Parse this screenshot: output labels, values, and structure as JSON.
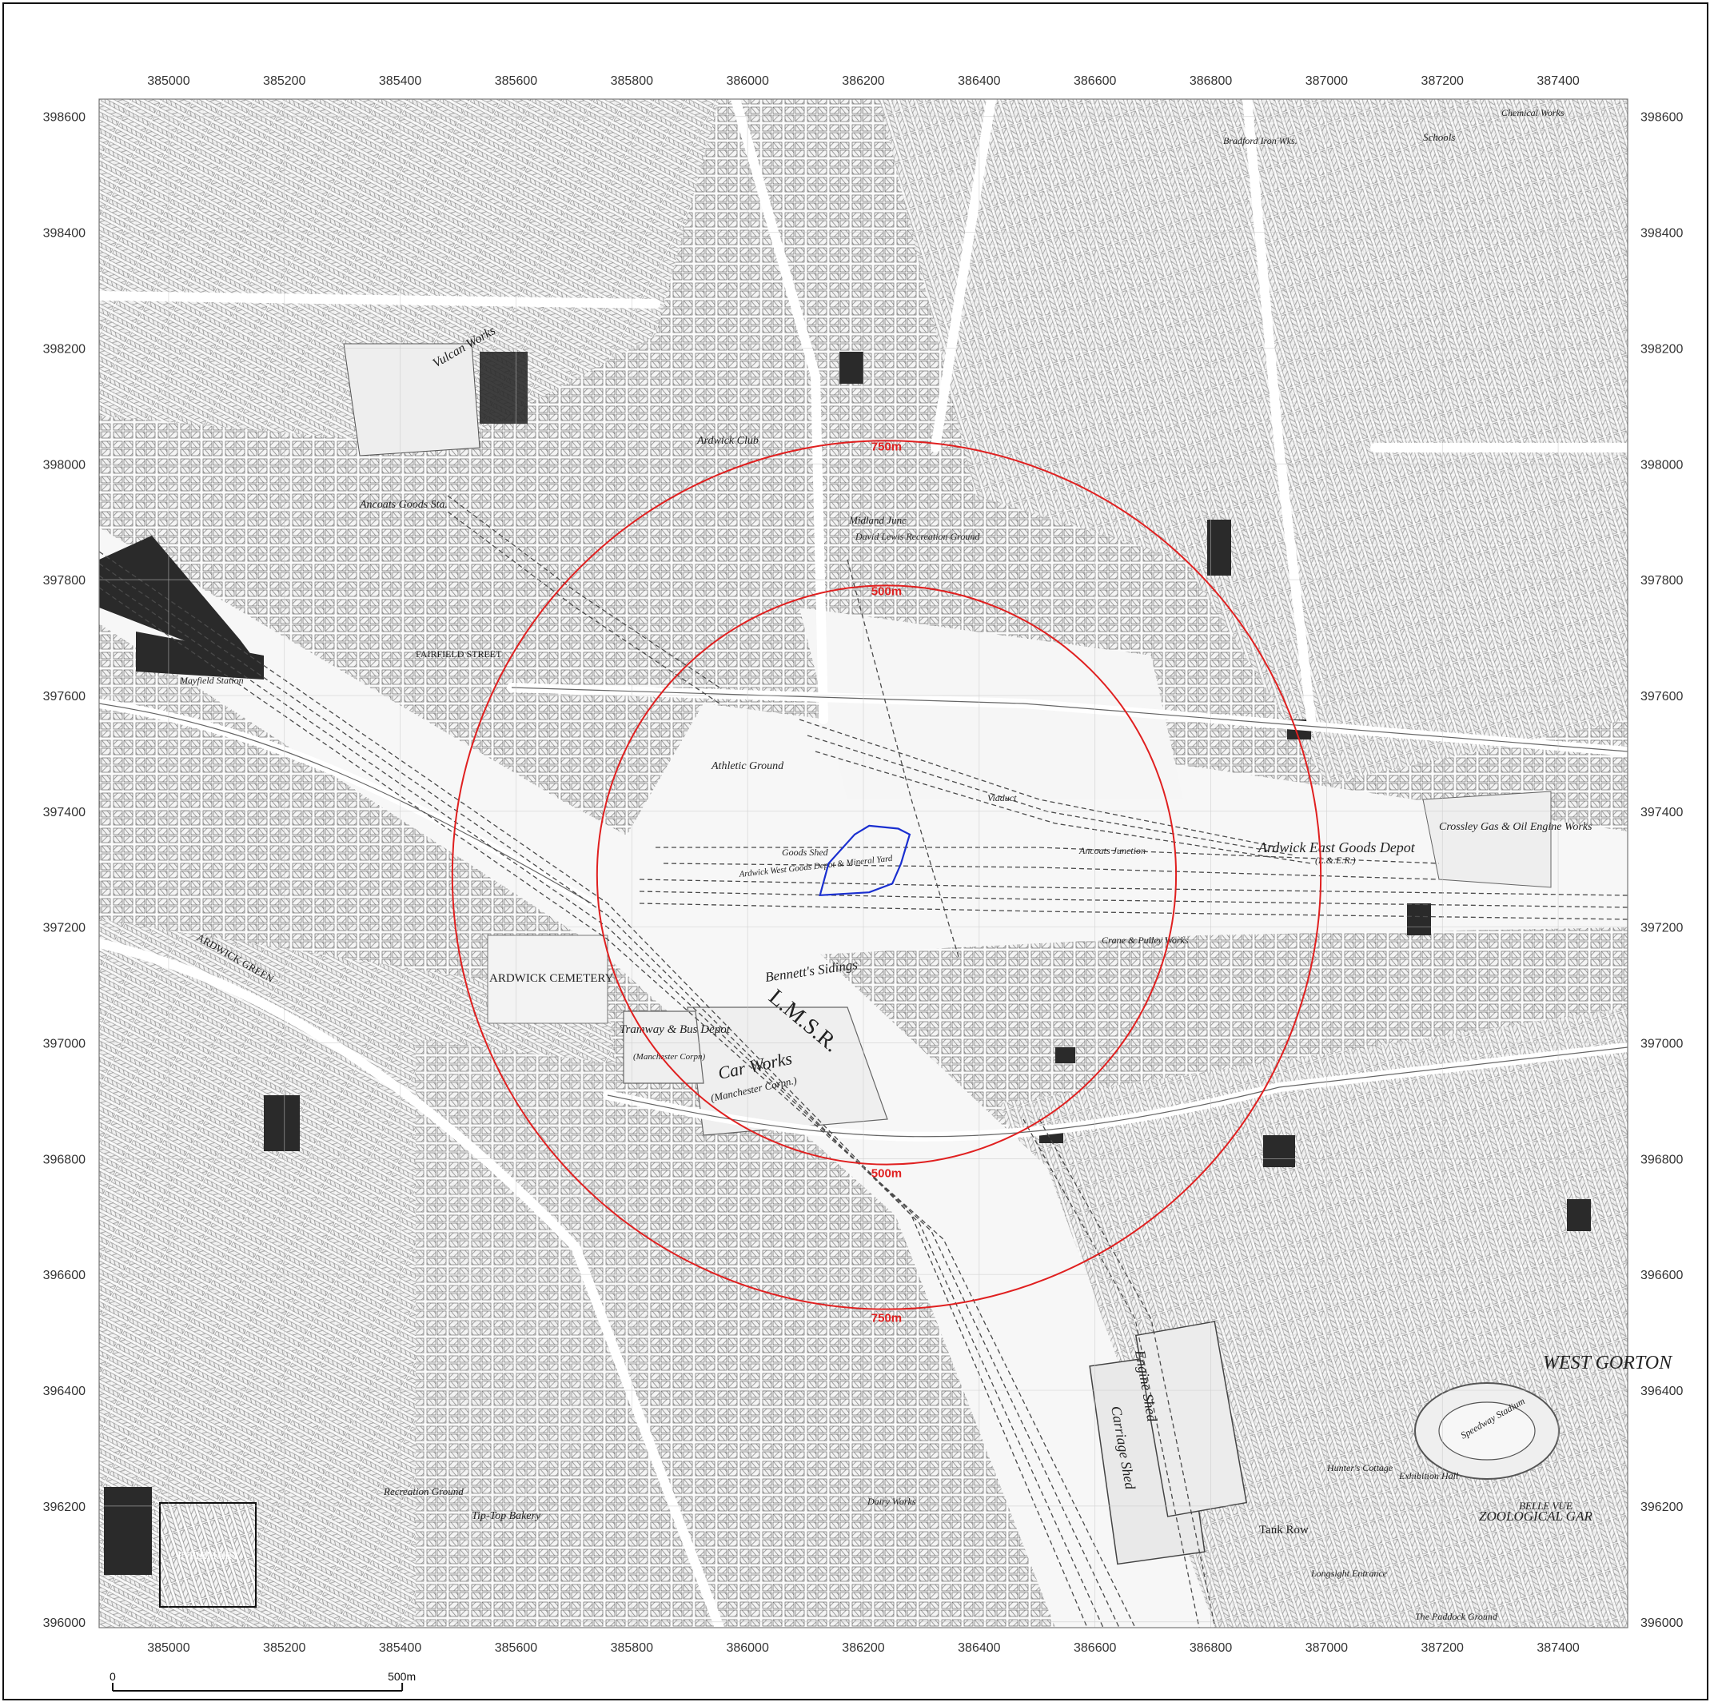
{
  "map": {
    "easting_min": 384880,
    "easting_max": 387520,
    "northing_min": 395990,
    "northing_max": 398630,
    "x_ticks": [
      385000,
      385200,
      385400,
      385600,
      385800,
      386000,
      386200,
      386400,
      386600,
      386800,
      387000,
      387200,
      387400
    ],
    "y_ticks": [
      398600,
      398400,
      398200,
      398000,
      397800,
      397600,
      397400,
      397200,
      397000,
      396800,
      396600,
      396400,
      396200,
      396000
    ],
    "x_tick_labels": [
      "385000",
      "385200",
      "385400",
      "385600",
      "385800",
      "386000",
      "386200",
      "386400",
      "386600",
      "386800",
      "387000",
      "387200",
      "387400"
    ],
    "y_tick_labels": [
      "398600",
      "398400",
      "398200",
      "398000",
      "397800",
      "397600",
      "397400",
      "397200",
      "397000",
      "396800",
      "396600",
      "396400",
      "396200",
      "396000"
    ],
    "site_center": {
      "easting": 386240,
      "northing": 397290
    },
    "rings": [
      {
        "radius_m": 500,
        "label_top": "500m",
        "label_bottom": "500m",
        "color": "#e02020"
      },
      {
        "radius_m": 750,
        "label_top": "750m",
        "label_bottom": "750m",
        "color": "#e02020"
      }
    ],
    "site_color": "#1a2fd0",
    "site_outline_en": [
      [
        386210,
        397375
      ],
      [
        386260,
        397370
      ],
      [
        386280,
        397360
      ],
      [
        386265,
        397310
      ],
      [
        386250,
        397275
      ],
      [
        386210,
        397260
      ],
      [
        386125,
        397255
      ],
      [
        386140,
        397310
      ],
      [
        386185,
        397360
      ]
    ],
    "scalebar": {
      "start_label": "0",
      "end_label": "500m",
      "length_m": 500
    }
  },
  "labels": {
    "ardwick_cemetery": "ARDWICK CEMETERY",
    "car_works": "Car Works",
    "car_works_sub": "(Manchester Corpn.)",
    "tramway_depot": "Tramway & Bus Depot",
    "tramway_sub": "(Manchester Corpn)",
    "ardwick_east": "Ardwick East Goods Depot",
    "ardwick_east_sub": "(L.&.E.R.)",
    "crossley": "Crossley Gas & Oil Engine Works",
    "lmsr": "L.M.S.R.",
    "bennetts": "Bennett's Sidings",
    "athletic": "Athletic Ground",
    "ancoats": "Ancoats Goods Sta.",
    "vulcan": "Vulcan Works",
    "ardwick_club": "Ardwick Club",
    "mayfield": "Mayfield Station",
    "tip_top": "Tip-Top Bakery",
    "recreation": "Recreation Ground",
    "tank_row": "Tank Row",
    "engine_shed": "Engine Shed",
    "carriage_shed": "Carriage Shed",
    "west_gorton": "WEST GORTON",
    "zoological": "ZOOLOGICAL GAR",
    "speedway": "Speedway Stadium",
    "exhibition": "Exhibition Hall",
    "hunters": "Hunter's Cottage",
    "crane_works": "Crane & Pulley Works",
    "fairfield": "FAIRFIELD STREET",
    "ardwick_green": "ARDWICK GREEN",
    "midland_junc": "Midland Junc",
    "david_lewis": "David Lewis Recreation Ground",
    "goods_shed": "Goods Shed",
    "dairy_works": "Dairy Works",
    "infirmary": "INFIRMARY",
    "chemical_works": "Chemical Works",
    "bradford_iron": "Bradford Iron Wks.",
    "schools": "Schools",
    "ardwick_west": "Ardwick West Goods Depot & Mineral Yard",
    "ancoats_junction": "Ancoats Junction",
    "viaduct": "Viaduct",
    "belle_vue": "BELLE VUE",
    "longsight": "Longsight Entrance",
    "paddock": "The Paddock Ground"
  }
}
